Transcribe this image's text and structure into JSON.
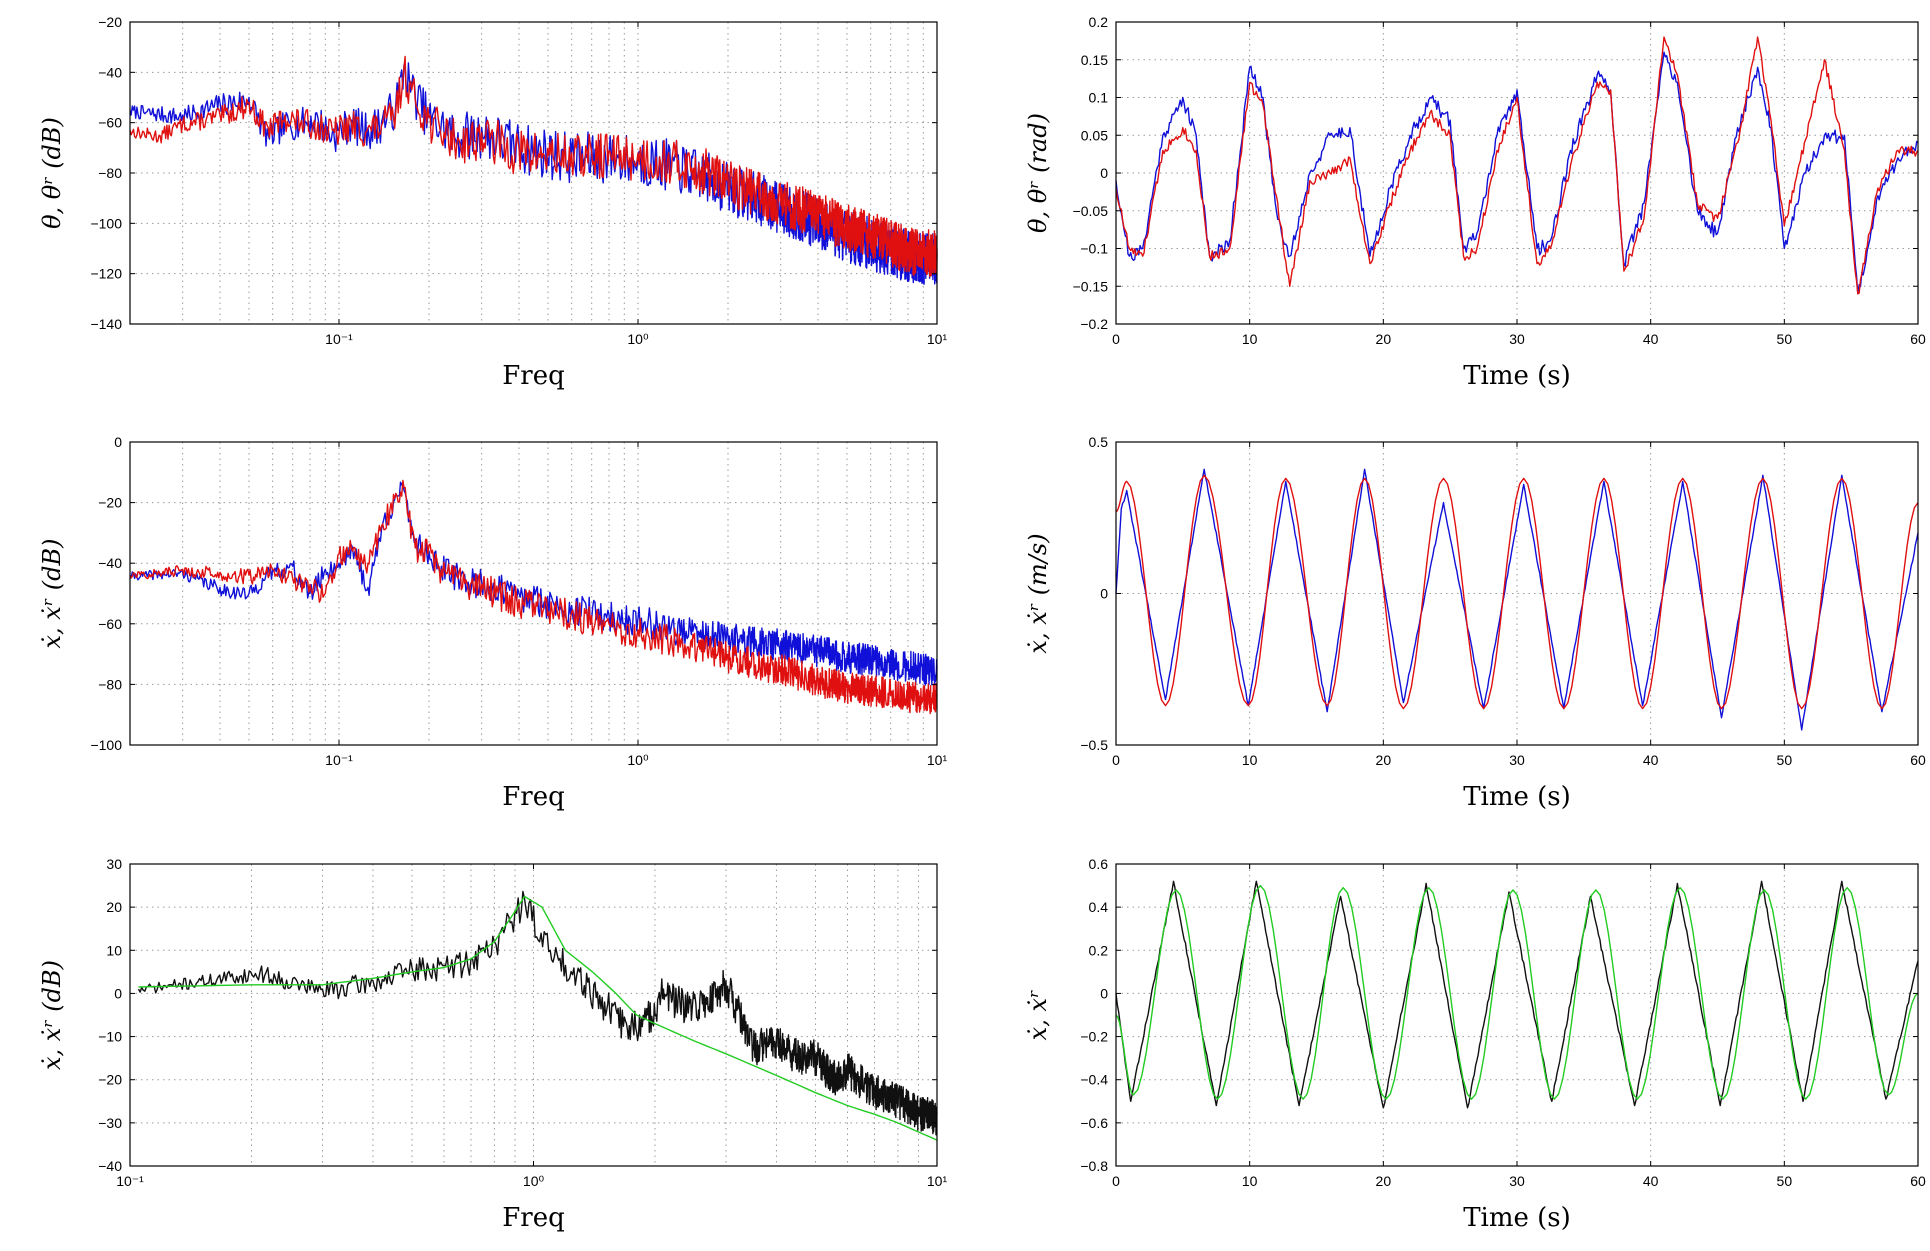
{
  "colors": {
    "blue": "#1010d8",
    "red": "#e01010",
    "black": "#101010",
    "green": "#22cc22"
  },
  "chart_data": [
    {
      "id": "p1",
      "type": "line",
      "xscale": "log",
      "xlabel": "Freq",
      "ylabel": "θ, θʳ (dB)",
      "xlim": [
        0.02,
        10
      ],
      "ylim": [
        -140,
        -20
      ],
      "yticks": [
        -20,
        -40,
        -60,
        -80,
        -100,
        -120,
        -140
      ],
      "yticklabels": [
        "−20",
        "−40",
        "−60",
        "−80",
        "−100",
        "−120",
        "−140"
      ],
      "xticks": [
        0.1,
        1,
        10
      ],
      "xticklabels": [
        "10⁻¹",
        "10⁰",
        "10¹"
      ],
      "series": [
        {
          "color": "blue",
          "x": [
            0.02,
            0.03,
            0.04,
            0.05,
            0.058,
            0.066,
            0.075,
            0.085,
            0.095,
            0.11,
            0.125,
            0.14,
            0.155,
            0.165,
            0.175,
            0.2,
            0.25,
            0.3,
            0.4,
            0.6,
            0.8,
            1.0,
            1.3,
            1.7,
            2.0,
            2.5,
            3.0,
            4.0,
            5.0,
            6.0,
            7.0,
            8.0,
            9.0,
            10.0
          ],
          "y": [
            -55,
            -57,
            -52,
            -50,
            -65,
            -60,
            -59,
            -58,
            -64,
            -59,
            -62,
            -58,
            -52,
            -37,
            -45,
            -57,
            -64,
            -62,
            -68,
            -72,
            -72,
            -73,
            -75,
            -80,
            -84,
            -88,
            -92,
            -98,
            -103,
            -106,
            -109,
            -111,
            -112,
            -112
          ],
          "noise": 10,
          "seed": 7
        },
        {
          "color": "red",
          "x": [
            0.02,
            0.025,
            0.03,
            0.04,
            0.05,
            0.058,
            0.066,
            0.075,
            0.085,
            0.095,
            0.11,
            0.125,
            0.14,
            0.155,
            0.165,
            0.175,
            0.2,
            0.25,
            0.3,
            0.4,
            0.6,
            0.8,
            1.0,
            1.3,
            1.7,
            2.0,
            2.5,
            3.0,
            4.0,
            5.0,
            6.0,
            7.0,
            8.0,
            9.0,
            10.0
          ],
          "y": [
            -63,
            -65,
            -60,
            -57,
            -52,
            -62,
            -57,
            -59,
            -60,
            -63,
            -60,
            -62,
            -60,
            -55,
            -38,
            -47,
            -58,
            -66,
            -64,
            -70,
            -72,
            -71,
            -72,
            -74,
            -78,
            -82,
            -86,
            -90,
            -95,
            -100,
            -103,
            -106,
            -109,
            -110,
            -110
          ],
          "noise": 9,
          "seed": 13
        }
      ]
    },
    {
      "id": "p2",
      "type": "line",
      "xscale": "linear",
      "xlabel": "Time (s)",
      "ylabel": "θ, θʳ (rad)",
      "xlim": [
        0,
        60
      ],
      "ylim": [
        -0.2,
        0.2
      ],
      "yticks": [
        0.2,
        0.15,
        0.1,
        0.05,
        0,
        -0.05,
        -0.1,
        -0.15,
        -0.2
      ],
      "yticklabels": [
        "0.2",
        "0.15",
        "0.1",
        "0.05",
        "0",
        "−0.05",
        "−0.1",
        "−0.15",
        "−0.2"
      ],
      "xticks": [
        0,
        10,
        20,
        30,
        40,
        50,
        60
      ],
      "xticklabels": [
        "0",
        "10",
        "20",
        "30",
        "40",
        "50",
        "60"
      ],
      "series": [
        {
          "color": "blue",
          "x": [
            0,
            1,
            2,
            3.5,
            5,
            6,
            7,
            8.5,
            10,
            11,
            12,
            13,
            14.5,
            16,
            17.5,
            19,
            20.5,
            22,
            23.5,
            25,
            26,
            27,
            28.5,
            30,
            31.5,
            32.5,
            34,
            36,
            37,
            38,
            39.5,
            41,
            42,
            43.5,
            45,
            46.5,
            48,
            49,
            50,
            51.5,
            53,
            54.5,
            55.5,
            57,
            58.5,
            60
          ],
          "y": [
            -0.01,
            -0.11,
            -0.1,
            0.05,
            0.1,
            0.05,
            -0.11,
            -0.09,
            0.14,
            0.1,
            -0.05,
            -0.11,
            0.0,
            0.05,
            0.06,
            -0.11,
            -0.02,
            0.05,
            0.1,
            0.07,
            -0.1,
            -0.08,
            0.05,
            0.11,
            -0.1,
            -0.09,
            0.03,
            0.13,
            0.11,
            -0.12,
            -0.04,
            0.16,
            0.12,
            -0.05,
            -0.08,
            0.06,
            0.14,
            0.06,
            -0.1,
            0.0,
            0.05,
            0.05,
            -0.16,
            -0.03,
            0.02,
            0.04
          ],
          "noise": 0.018,
          "seed": 21
        },
        {
          "color": "red",
          "x": [
            0,
            1,
            2,
            3.5,
            5,
            6,
            7,
            8.5,
            10,
            11,
            12,
            13,
            14.5,
            16,
            17.5,
            19,
            20.5,
            22,
            23.5,
            25,
            26,
            27,
            28.5,
            30,
            31.5,
            32.5,
            34,
            36,
            37,
            38,
            39.5,
            41,
            42,
            43.5,
            45,
            46.5,
            48,
            49,
            50,
            51.5,
            53,
            54.5,
            55.5,
            57,
            58.5,
            60
          ],
          "y": [
            -0.02,
            -0.1,
            -0.11,
            0.03,
            0.06,
            0.03,
            -0.11,
            -0.1,
            0.12,
            0.09,
            -0.03,
            -0.15,
            -0.01,
            0.0,
            0.02,
            -0.12,
            -0.04,
            0.03,
            0.08,
            0.05,
            -0.11,
            -0.1,
            0.03,
            0.1,
            -0.12,
            -0.1,
            0.01,
            0.12,
            0.11,
            -0.13,
            -0.06,
            0.18,
            0.13,
            -0.04,
            -0.06,
            0.04,
            0.18,
            0.07,
            -0.07,
            0.04,
            0.15,
            0.03,
            -0.16,
            -0.02,
            0.03,
            0.03
          ],
          "noise": 0.014,
          "seed": 33
        }
      ]
    },
    {
      "id": "p3",
      "type": "line",
      "xscale": "log",
      "xlabel": "Freq",
      "ylabel": "ẋ, ẋʳ (dB)",
      "xlim": [
        0.02,
        10
      ],
      "ylim": [
        -100,
        0
      ],
      "yticks": [
        0,
        -20,
        -40,
        -60,
        -80,
        -100
      ],
      "yticklabels": [
        "0",
        "−20",
        "−40",
        "−60",
        "−80",
        "−100"
      ],
      "xticks": [
        0.1,
        1,
        10
      ],
      "xticklabels": [
        "10⁻¹",
        "10⁰",
        "10¹"
      ],
      "series": [
        {
          "color": "blue",
          "x": [
            0.02,
            0.03,
            0.04,
            0.05,
            0.06,
            0.07,
            0.08,
            0.09,
            0.1,
            0.11,
            0.125,
            0.14,
            0.155,
            0.165,
            0.18,
            0.2,
            0.22,
            0.25,
            0.3,
            0.4,
            0.6,
            0.8,
            1.0,
            1.5,
            2.0,
            3.0,
            4.0,
            5.0,
            6.0,
            8.0,
            10.0
          ],
          "y": [
            -44,
            -43,
            -48,
            -50,
            -42,
            -41,
            -50,
            -42,
            -40,
            -34,
            -48,
            -27,
            -17,
            -16,
            -32,
            -36,
            -41,
            -44,
            -46,
            -50,
            -54,
            -57,
            -58,
            -62,
            -64,
            -66,
            -68,
            -70,
            -71,
            -73,
            -75
          ],
          "noise": 5,
          "seed": 41
        },
        {
          "color": "red",
          "x": [
            0.02,
            0.03,
            0.04,
            0.05,
            0.06,
            0.07,
            0.08,
            0.09,
            0.1,
            0.11,
            0.125,
            0.14,
            0.155,
            0.165,
            0.18,
            0.2,
            0.22,
            0.25,
            0.3,
            0.4,
            0.6,
            0.8,
            1.0,
            1.5,
            2.0,
            3.0,
            4.0,
            5.0,
            6.0,
            8.0,
            10.0
          ],
          "y": [
            -44,
            -42,
            -43,
            -44,
            -42,
            -45,
            -47,
            -50,
            -37,
            -35,
            -40,
            -27,
            -17,
            -15,
            -35,
            -34,
            -42,
            -45,
            -47,
            -52,
            -56,
            -60,
            -62,
            -66,
            -70,
            -74,
            -78,
            -80,
            -81,
            -83,
            -84
          ],
          "noise": 5,
          "seed": 57
        }
      ]
    },
    {
      "id": "p4",
      "type": "line",
      "xscale": "linear",
      "xlabel": "Time (s)",
      "ylabel": "ẋ, ẋʳ (m/s)",
      "xlim": [
        0,
        60
      ],
      "ylim": [
        -0.5,
        0.5
      ],
      "yticks": [
        0.5,
        0,
        -0.5
      ],
      "yticklabels": [
        "0.5",
        "0",
        "−0.5"
      ],
      "xticks": [
        0,
        10,
        20,
        30,
        40,
        50,
        60
      ],
      "xticklabels": [
        "0",
        "10",
        "20",
        "30",
        "40",
        "50",
        "60"
      ],
      "series": [
        {
          "color": "blue",
          "x": [
            0,
            0.4,
            0.8,
            3.7,
            6.6,
            9.9,
            12.7,
            15.8,
            18.6,
            21.5,
            24.5,
            27.5,
            30.5,
            33.5,
            36.5,
            39.4,
            42.4,
            45.3,
            48.4,
            51.3,
            54.3,
            57.3,
            60
          ],
          "y": [
            0.0,
            0.28,
            0.34,
            -0.35,
            0.41,
            -0.37,
            0.37,
            -0.39,
            0.41,
            -0.36,
            0.3,
            -0.38,
            0.36,
            -0.38,
            0.37,
            -0.37,
            0.37,
            -0.41,
            0.39,
            -0.45,
            0.39,
            -0.39,
            0.2
          ],
          "noise": 0.01,
          "seed": 61
        },
        {
          "color": "red",
          "x": [
            0,
            0.8,
            3.7,
            6.6,
            9.9,
            12.7,
            15.8,
            18.6,
            21.5,
            24.5,
            27.5,
            30.5,
            33.5,
            36.5,
            39.4,
            42.4,
            45.3,
            48.4,
            51.3,
            54.3,
            57.3,
            60
          ],
          "y": [
            0.27,
            0.37,
            -0.37,
            0.39,
            -0.37,
            0.38,
            -0.37,
            0.38,
            -0.38,
            0.38,
            -0.38,
            0.38,
            -0.38,
            0.38,
            -0.38,
            0.38,
            -0.38,
            0.38,
            -0.38,
            0.38,
            -0.38,
            0.3
          ],
          "noise": 0,
          "seed": 1
        }
      ]
    },
    {
      "id": "p5",
      "type": "line",
      "xscale": "log",
      "xlabel": "Freq",
      "ylabel": "ẋ, ẋʳ (dB)",
      "xlim": [
        0.1,
        10
      ],
      "ylim": [
        -40,
        30
      ],
      "yticks": [
        30,
        20,
        10,
        0,
        -10,
        -20,
        -30,
        -40
      ],
      "yticklabels": [
        "30",
        "20",
        "10",
        "0",
        "−10",
        "−20",
        "−30",
        "−40"
      ],
      "xticks": [
        0.1,
        1,
        10
      ],
      "xticklabels": [
        "10⁻¹",
        "10⁰",
        "10¹"
      ],
      "series": [
        {
          "color": "black",
          "x": [
            0.105,
            0.15,
            0.21,
            0.3,
            0.4,
            0.5,
            0.6,
            0.7,
            0.8,
            0.95,
            1.1,
            1.3,
            1.5,
            1.7,
            1.9,
            2.1,
            2.4,
            2.7,
            3.0,
            3.5,
            4.0,
            4.5,
            5.0,
            5.5,
            6.0,
            7.0,
            8.0,
            9.0,
            10.0
          ],
          "y": [
            1,
            3,
            5,
            1,
            3,
            6,
            6.5,
            8,
            12,
            22,
            10,
            5,
            -2,
            -7,
            -6,
            1,
            -3,
            -1,
            3,
            -12,
            -10,
            -14,
            -14,
            -19,
            -17,
            -22,
            -24,
            -27,
            -28
          ],
          "noise": 4,
          "seed": 71
        },
        {
          "color": "green",
          "x": [
            0.105,
            0.2,
            0.3,
            0.4,
            0.5,
            0.6,
            0.7,
            0.8,
            0.9,
            0.95,
            1.05,
            1.2,
            1.4,
            1.6,
            1.8,
            2.0,
            2.5,
            3.0,
            4.0,
            5.0,
            6.0,
            7.0,
            8.0,
            10.0
          ],
          "y": [
            1.5,
            2,
            2,
            3.5,
            5,
            6,
            8,
            12,
            19,
            22.5,
            20,
            10,
            5,
            0,
            -5,
            -7,
            -11,
            -14,
            -19,
            -23,
            -26,
            -28,
            -30,
            -34
          ],
          "noise": 0,
          "seed": 1
        }
      ]
    },
    {
      "id": "p6",
      "type": "line",
      "xscale": "linear",
      "xlabel": "Time (s)",
      "ylabel": "ẋ, ẋʳ",
      "xlim": [
        0,
        60
      ],
      "ylim": [
        -0.8,
        0.6
      ],
      "yticks": [
        0.6,
        0.4,
        0.2,
        0,
        -0.2,
        -0.4,
        -0.6,
        -0.8
      ],
      "yticklabels": [
        "0.6",
        "0.4",
        "0.2",
        "0",
        "−0.2",
        "−0.4",
        "−0.6",
        "−0.8"
      ],
      "xticks": [
        0,
        10,
        20,
        30,
        40,
        50,
        60
      ],
      "xticklabels": [
        "0",
        "10",
        "20",
        "30",
        "40",
        "50",
        "60"
      ],
      "series": [
        {
          "color": "black",
          "x": [
            0,
            1.1,
            4.3,
            7.5,
            10.5,
            13.7,
            16.8,
            20.0,
            23.2,
            26.3,
            29.4,
            32.6,
            35.5,
            38.8,
            42.0,
            45.2,
            48.3,
            51.4,
            54.3,
            57.6,
            60
          ],
          "y": [
            0.0,
            -0.5,
            0.52,
            -0.52,
            0.52,
            -0.52,
            0.45,
            -0.53,
            0.51,
            -0.53,
            0.47,
            -0.5,
            0.45,
            -0.52,
            0.51,
            -0.52,
            0.52,
            -0.5,
            0.52,
            -0.49,
            0.15
          ],
          "noise": 0.02,
          "seed": 83
        },
        {
          "color": "green",
          "x": [
            0,
            1.3,
            4.5,
            7.6,
            10.8,
            14.0,
            17.0,
            20.2,
            23.4,
            26.6,
            29.7,
            32.8,
            35.9,
            39.0,
            42.2,
            45.4,
            48.5,
            51.6,
            54.7,
            57.8,
            60
          ],
          "y": [
            -0.1,
            -0.47,
            0.48,
            -0.49,
            0.5,
            -0.49,
            0.49,
            -0.49,
            0.49,
            -0.49,
            0.48,
            -0.49,
            0.48,
            -0.49,
            0.49,
            -0.49,
            0.48,
            -0.49,
            0.49,
            -0.47,
            0.0
          ],
          "noise": 0,
          "seed": 1
        }
      ]
    }
  ]
}
